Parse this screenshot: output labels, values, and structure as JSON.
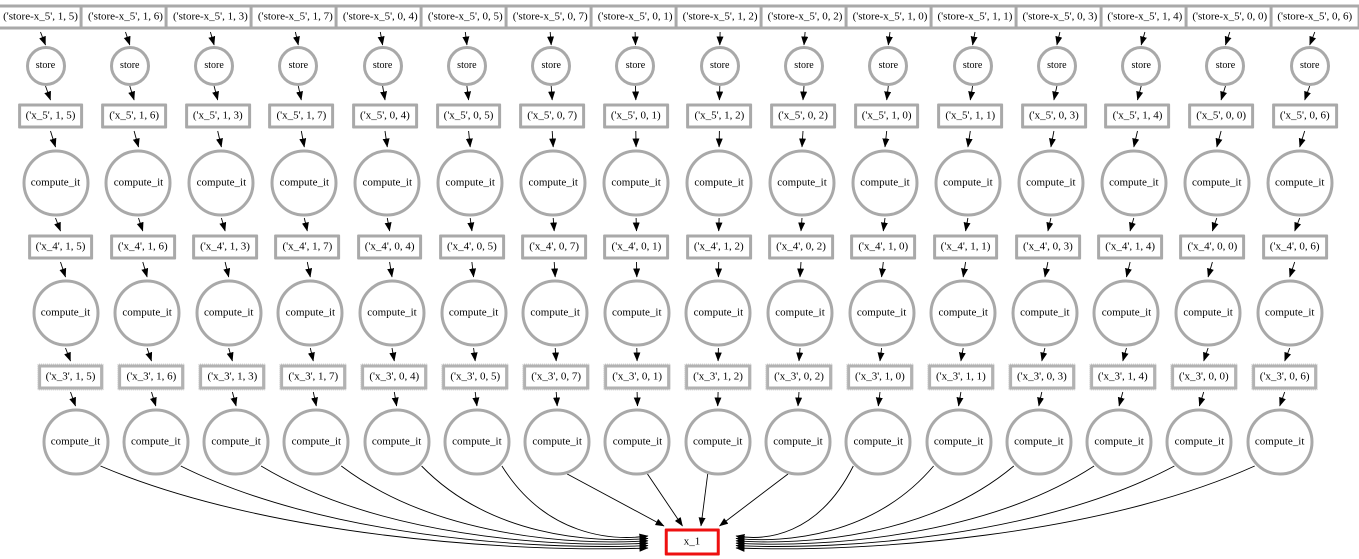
{
  "diagram": {
    "labels": {
      "store": "store",
      "compute": "compute_it"
    },
    "sink_label": "x_1",
    "colors": {
      "node_border": "#a9a9a9",
      "sink_border": "#ee1010",
      "edge": "#000000",
      "node_fill": "#ffffff",
      "text": "#000000"
    },
    "columns": [
      {
        "store_key": "('store-x_5', 1, 5)",
        "x5": "('x_5', 1, 5)",
        "x4": "('x_4', 1, 5)",
        "x3": "('x_3', 1, 5)"
      },
      {
        "store_key": "('store-x_5', 1, 6)",
        "x5": "('x_5', 1, 6)",
        "x4": "('x_4', 1, 6)",
        "x3": "('x_3', 1, 6)"
      },
      {
        "store_key": "('store-x_5', 1, 3)",
        "x5": "('x_5', 1, 3)",
        "x4": "('x_4', 1, 3)",
        "x3": "('x_3', 1, 3)"
      },
      {
        "store_key": "('store-x_5', 1, 7)",
        "x5": "('x_5', 1, 7)",
        "x4": "('x_4', 1, 7)",
        "x3": "('x_3', 1, 7)"
      },
      {
        "store_key": "('store-x_5', 0, 4)",
        "x5": "('x_5', 0, 4)",
        "x4": "('x_4', 0, 4)",
        "x3": "('x_3', 0, 4)"
      },
      {
        "store_key": "('store-x_5', 0, 5)",
        "x5": "('x_5', 0, 5)",
        "x4": "('x_4', 0, 5)",
        "x3": "('x_3', 0, 5)"
      },
      {
        "store_key": "('store-x_5', 0, 7)",
        "x5": "('x_5', 0, 7)",
        "x4": "('x_4', 0, 7)",
        "x3": "('x_3', 0, 7)"
      },
      {
        "store_key": "('store-x_5', 0, 1)",
        "x5": "('x_5', 0, 1)",
        "x4": "('x_4', 0, 1)",
        "x3": "('x_3', 0, 1)"
      },
      {
        "store_key": "('store-x_5', 1, 2)",
        "x5": "('x_5', 1, 2)",
        "x4": "('x_4', 1, 2)",
        "x3": "('x_3', 1, 2)"
      },
      {
        "store_key": "('store-x_5', 0, 2)",
        "x5": "('x_5', 0, 2)",
        "x4": "('x_4', 0, 2)",
        "x3": "('x_3', 0, 2)"
      },
      {
        "store_key": "('store-x_5', 1, 0)",
        "x5": "('x_5', 1, 0)",
        "x4": "('x_4', 1, 0)",
        "x3": "('x_3', 1, 0)"
      },
      {
        "store_key": "('store-x_5', 1, 1)",
        "x5": "('x_5', 1, 1)",
        "x4": "('x_4', 1, 1)",
        "x3": "('x_3', 1, 1)"
      },
      {
        "store_key": "('store-x_5', 0, 3)",
        "x5": "('x_5', 0, 3)",
        "x4": "('x_4', 0, 3)",
        "x3": "('x_3', 0, 3)"
      },
      {
        "store_key": "('store-x_5', 1, 4)",
        "x5": "('x_5', 1, 4)",
        "x4": "('x_4', 1, 4)",
        "x3": "('x_3', 1, 4)"
      },
      {
        "store_key": "('store-x_5', 0, 0)",
        "x5": "('x_5', 0, 0)",
        "x4": "('x_4', 0, 0)",
        "x3": "('x_3', 0, 0)"
      },
      {
        "store_key": "('store-x_5', 0, 6)",
        "x5": "('x_5', 0, 6)",
        "x4": "('x_4', 0, 6)",
        "x3": "('x_3', 0, 6)"
      }
    ]
  }
}
